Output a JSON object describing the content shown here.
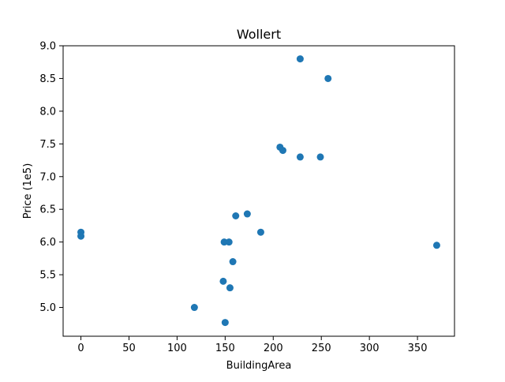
{
  "chart_data": {
    "type": "scatter",
    "title": "Wollert",
    "xlabel": "BuildingArea",
    "ylabel": "Price (1e5)",
    "xlim": [
      -18.5,
      388.5
    ],
    "ylim": [
      4.56,
      9.0
    ],
    "xticks": [
      0,
      50,
      100,
      150,
      200,
      250,
      300,
      350
    ],
    "yticks": [
      5.0,
      5.5,
      6.0,
      6.5,
      7.0,
      7.5,
      8.0,
      8.5,
      9.0
    ],
    "xtick_labels": [
      "0",
      "50",
      "100",
      "150",
      "200",
      "250",
      "300",
      "350"
    ],
    "ytick_labels": [
      "5.0",
      "5.5",
      "6.0",
      "6.5",
      "7.0",
      "7.5",
      "8.0",
      "8.5",
      "9.0"
    ],
    "grid": false,
    "marker_color": "#1f77b4",
    "points": [
      {
        "x": 0,
        "y": 6.15
      },
      {
        "x": 0,
        "y": 6.09
      },
      {
        "x": 118,
        "y": 5.0
      },
      {
        "x": 148,
        "y": 5.4
      },
      {
        "x": 149,
        "y": 6.0
      },
      {
        "x": 150,
        "y": 4.77
      },
      {
        "x": 154,
        "y": 6.0
      },
      {
        "x": 155,
        "y": 5.3
      },
      {
        "x": 158,
        "y": 5.7
      },
      {
        "x": 161,
        "y": 6.4
      },
      {
        "x": 173,
        "y": 6.43
      },
      {
        "x": 187,
        "y": 6.15
      },
      {
        "x": 207,
        "y": 7.45
      },
      {
        "x": 210,
        "y": 7.4
      },
      {
        "x": 228,
        "y": 8.8
      },
      {
        "x": 228,
        "y": 7.3
      },
      {
        "x": 249,
        "y": 7.3
      },
      {
        "x": 257,
        "y": 8.5
      },
      {
        "x": 370,
        "y": 5.95
      }
    ]
  }
}
